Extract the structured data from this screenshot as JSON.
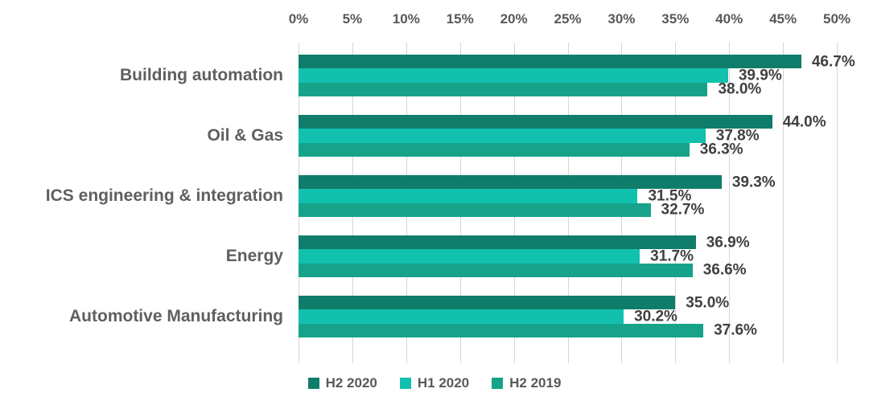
{
  "chart_data": {
    "type": "bar",
    "orientation": "horizontal",
    "title": "",
    "xlabel": "",
    "ylabel": "",
    "xlim": [
      0,
      50
    ],
    "x_tick_values": [
      0,
      5,
      10,
      15,
      20,
      25,
      30,
      35,
      40,
      45,
      50
    ],
    "x_tick_labels": [
      "0%",
      "5%",
      "10%",
      "15%",
      "20%",
      "25%",
      "30%",
      "35%",
      "40%",
      "45%",
      "50%"
    ],
    "grid": true,
    "legend_position": "bottom",
    "categories": [
      "Building automation",
      "Oil & Gas",
      "ICS engineering & integration",
      "Energy",
      "Automotive Manufacturing"
    ],
    "series": [
      {
        "name": "H2 2020",
        "color": "#0f7d6a",
        "values": [
          46.7,
          44.0,
          39.3,
          36.9,
          35.0
        ],
        "labels": [
          "46.7%",
          "44.0%",
          "39.3%",
          "36.9%",
          "35.0%"
        ]
      },
      {
        "name": "H1 2020",
        "color": "#12c1ad",
        "values": [
          39.9,
          37.8,
          31.5,
          31.7,
          30.2
        ],
        "labels": [
          "39.9%",
          "37.8%",
          "31.5%",
          "31.7%",
          "30.2%"
        ]
      },
      {
        "name": "H2 2019",
        "color": "#16a38a",
        "values": [
          38.0,
          36.3,
          32.7,
          36.6,
          37.6
        ],
        "labels": [
          "38.0%",
          "36.3%",
          "32.7%",
          "36.6%",
          "37.6%"
        ]
      }
    ],
    "colors": {
      "gridline": "#d6d6d6",
      "axis_text": "#595959",
      "category_text": "#5f5f5f",
      "value_text": "#404040",
      "background": "#ffffff"
    }
  }
}
